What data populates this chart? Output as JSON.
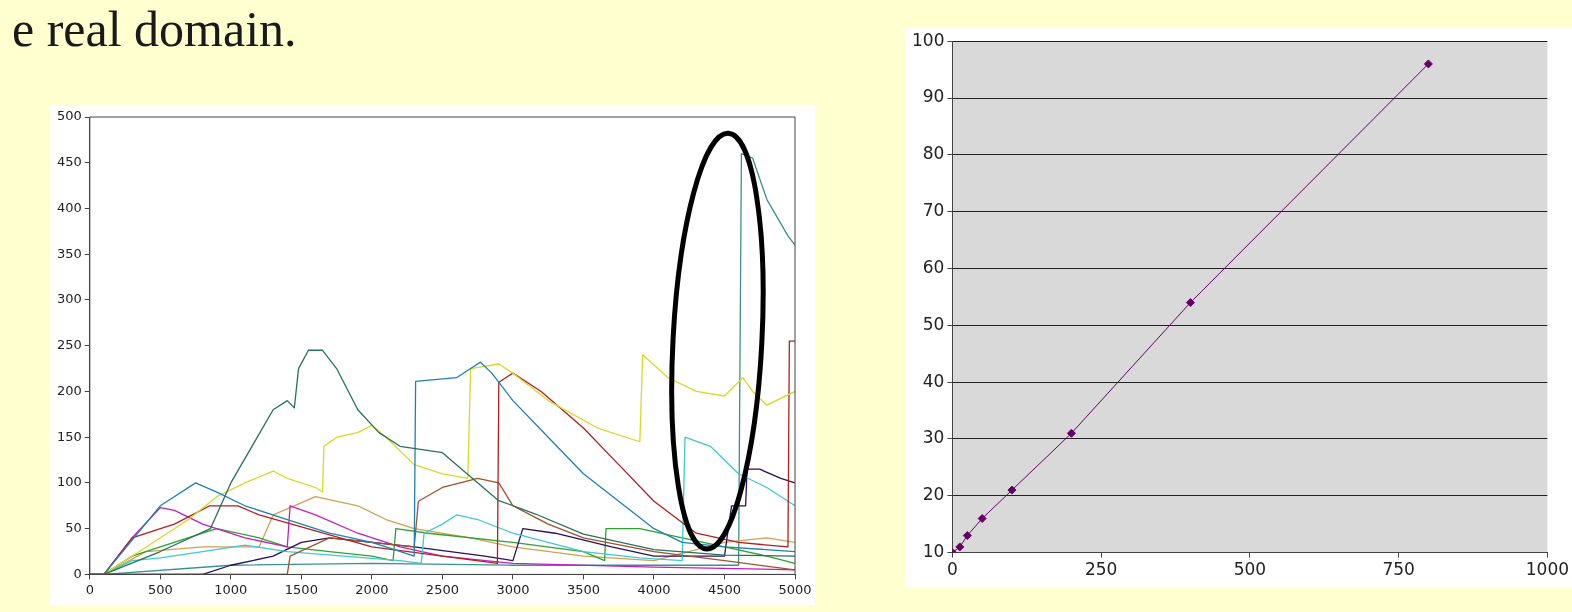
{
  "chart_data": [
    {
      "type": "line",
      "title": "e real domain.",
      "xlim": [
        0,
        5000
      ],
      "xticks": [
        0,
        500,
        1000,
        1500,
        2000,
        2500,
        3000,
        3500,
        4000,
        4500,
        5000
      ],
      "ylim": [
        0,
        500
      ],
      "yticks": [
        0,
        50,
        100,
        150,
        200,
        250,
        300,
        350,
        400,
        450,
        500
      ],
      "grid": false,
      "marker": "none",
      "line_style": "solid",
      "series": [
        {
          "color": "#2a7060",
          "x": [
            0,
            100,
            500,
            855,
            1000,
            1300,
            1400,
            1450,
            1480,
            1550,
            1650,
            1750,
            1900,
            2050,
            2200,
            2500,
            2895,
            3160,
            3500,
            4000,
            4500,
            5000
          ],
          "values": [
            0,
            0,
            25,
            50,
            100,
            180,
            190,
            182,
            225,
            245,
            245,
            225,
            180,
            155,
            140,
            133,
            81,
            66,
            44,
            27,
            21,
            20
          ]
        },
        {
          "color": "#2080b0",
          "x": [
            0,
            100,
            500,
            750,
            900,
            1100,
            1400,
            1700,
            2000,
            2100,
            2300,
            2310,
            2600,
            2700,
            2770,
            2850,
            3000,
            3250,
            3500,
            3750,
            4000,
            4200,
            4500,
            5000
          ],
          "values": [
            0,
            0,
            75,
            100,
            90,
            75,
            60,
            45,
            35,
            30,
            20,
            211,
            215,
            225,
            232,
            220,
            190,
            150,
            110,
            80,
            50,
            35,
            30,
            25
          ]
        },
        {
          "color": "#d8d828",
          "x": [
            0,
            100,
            400,
            700,
            900,
            1100,
            1300,
            1400,
            1600,
            1650,
            1660,
            1750,
            1900,
            2000,
            2100,
            2300,
            2500,
            2680,
            2700,
            2900,
            3000,
            3250,
            3600,
            3900,
            3920,
            4100,
            4300,
            4500,
            4630,
            4700,
            4800,
            5000
          ],
          "values": [
            0,
            0,
            30,
            60,
            85,
            100,
            113,
            105,
            95,
            90,
            140,
            150,
            155,
            163,
            150,
            120,
            110,
            105,
            225,
            230,
            220,
            190,
            160,
            145,
            240,
            215,
            200,
            195,
            215,
            200,
            185,
            200
          ]
        },
        {
          "color": "#b02020",
          "x": [
            0,
            100,
            300,
            500,
            600,
            850,
            1050,
            1200,
            2000,
            2500,
            2890,
            2900,
            3000,
            3200,
            3500,
            3750,
            4000,
            4300,
            4600,
            4950,
            4960,
            5000
          ],
          "values": [
            0,
            0,
            40,
            50,
            55,
            75,
            75,
            65,
            30,
            20,
            12,
            210,
            220,
            200,
            160,
            120,
            80,
            45,
            35,
            30,
            255,
            255
          ]
        },
        {
          "color": "#a0522d",
          "x": [
            0,
            1400,
            1420,
            1700,
            2000,
            2300,
            2330,
            2500,
            2750,
            2900,
            3000,
            3250,
            3500,
            4000,
            4500,
            5000
          ],
          "values": [
            0,
            0,
            20,
            40,
            35,
            30,
            80,
            95,
            105,
            100,
            75,
            55,
            40,
            25,
            15,
            5
          ]
        },
        {
          "color": "#40c8d0",
          "x": [
            0,
            100,
            300,
            500,
            800,
            1100,
            1400,
            1800,
            2200,
            2350,
            2370,
            2500,
            2600,
            2750,
            3000,
            3250,
            3500,
            3900,
            4200,
            4220,
            4400,
            4600,
            4800,
            5000
          ],
          "values": [
            0,
            0,
            15,
            18,
            25,
            32,
            25,
            20,
            15,
            12,
            45,
            55,
            65,
            60,
            45,
            35,
            25,
            18,
            15,
            150,
            140,
            110,
            95,
            75
          ]
        },
        {
          "color": "#c020c0",
          "x": [
            0,
            100,
            300,
            500,
            600,
            800,
            1100,
            1400,
            1420,
            1600,
            1900,
            2200,
            2500,
            3000,
            4000,
            5000
          ],
          "values": [
            0,
            0,
            40,
            73,
            70,
            55,
            40,
            30,
            75,
            65,
            45,
            30,
            20,
            12,
            8,
            5
          ]
        },
        {
          "color": "#281060",
          "x": [
            0,
            800,
            1000,
            1300,
            1500,
            1700,
            2000,
            2300,
            2800,
            3000,
            3070,
            3300,
            3700,
            4000,
            4500,
            4550,
            4650,
            4660,
            4750,
            4900,
            5000
          ],
          "values": [
            0,
            0,
            10,
            20,
            35,
            40,
            35,
            30,
            20,
            15,
            50,
            45,
            30,
            20,
            20,
            75,
            75,
            115,
            115,
            105,
            100
          ]
        },
        {
          "color": "#30a030",
          "x": [
            0,
            100,
            300,
            500,
            800,
            900,
            1200,
            1400,
            1700,
            2000,
            2150,
            2170,
            2400,
            3000,
            3500,
            3650,
            3660,
            3900,
            4200,
            4500,
            4800,
            5000
          ],
          "values": [
            0,
            0,
            20,
            30,
            45,
            50,
            40,
            30,
            25,
            20,
            15,
            50,
            45,
            35,
            25,
            15,
            50,
            50,
            40,
            30,
            20,
            12
          ]
        },
        {
          "color": "#d0a050",
          "x": [
            0,
            100,
            400,
            800,
            1200,
            1300,
            1600,
            1900,
            2100,
            2300,
            2700,
            3000,
            3500,
            4000,
            4500,
            4800,
            5000
          ],
          "values": [
            0,
            0,
            25,
            30,
            30,
            65,
            85,
            75,
            60,
            50,
            40,
            30,
            20,
            15,
            35,
            40,
            35
          ]
        },
        {
          "color": "#3a9090",
          "x": [
            0,
            100,
            1000,
            2000,
            3000,
            4600,
            4620,
            4700,
            4800,
            4950,
            5000
          ],
          "values": [
            0,
            0,
            10,
            12,
            10,
            10,
            460,
            455,
            410,
            370,
            360
          ]
        }
      ]
    },
    {
      "type": "line",
      "xlim": [
        0,
        1000
      ],
      "xticks": [
        0,
        250,
        500,
        750,
        1000
      ],
      "ylim": [
        10,
        100
      ],
      "yticks": [
        10,
        20,
        30,
        40,
        50,
        60,
        70,
        80,
        90,
        100
      ],
      "grid": "y",
      "marker": "diamond",
      "line_style": "solid",
      "series": [
        {
          "color": "#660066",
          "x": [
            0,
            12.5,
            25,
            50,
            100,
            200,
            400,
            800
          ],
          "values": [
            10,
            11,
            13,
            16,
            21,
            31,
            54,
            96
          ]
        }
      ]
    }
  ]
}
